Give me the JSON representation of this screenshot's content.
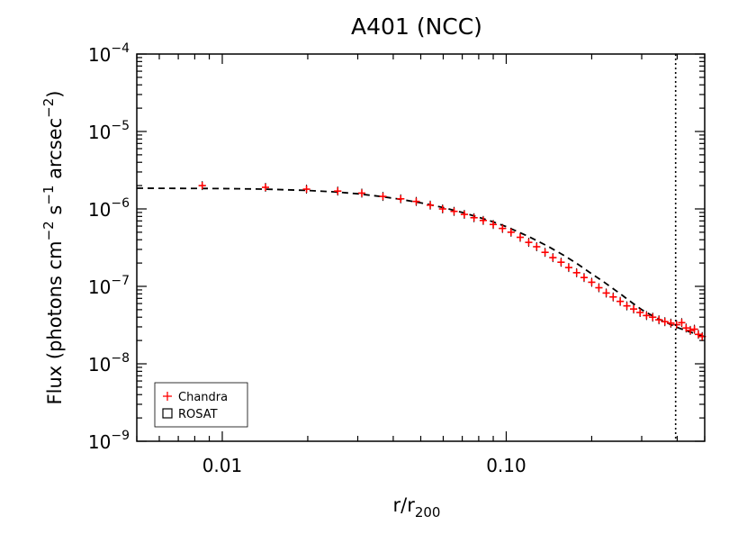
{
  "chart_data": {
    "type": "scatter",
    "title": "A401 (NCC)",
    "xlabel": {
      "base": "r/r",
      "sub": "200"
    },
    "ylabel": {
      "parts": [
        "Flux (photons cm",
        "−2",
        " s",
        "−1",
        " arcsec",
        "−2",
        ")"
      ]
    },
    "x_scale": "log",
    "y_scale": "log",
    "xlim": [
      0.005,
      0.5
    ],
    "ylim": [
      1e-09,
      0.0001
    ],
    "x_ticks": [
      {
        "value": 0.01,
        "label": "0.01"
      },
      {
        "value": 0.1,
        "label": "0.10"
      }
    ],
    "y_ticks": [
      {
        "value": 1e-09,
        "base": "10",
        "exp": "−9"
      },
      {
        "value": 1e-08,
        "base": "10",
        "exp": "−8"
      },
      {
        "value": 1e-07,
        "base": "10",
        "exp": "−7"
      },
      {
        "value": 1e-06,
        "base": "10",
        "exp": "−6"
      },
      {
        "value": 1e-05,
        "base": "10",
        "exp": "−5"
      },
      {
        "value": 0.0001,
        "base": "10",
        "exp": "−4"
      }
    ],
    "vline_x": 0.395,
    "series": [
      {
        "name": "Chandra",
        "color": "#ff0000",
        "marker": "plus",
        "x": [
          0.0085,
          0.0142,
          0.0198,
          0.0255,
          0.031,
          0.0368,
          0.0425,
          0.0482,
          0.054,
          0.0597,
          0.0655,
          0.0712,
          0.077,
          0.083,
          0.09,
          0.097,
          0.104,
          0.112,
          0.12,
          0.128,
          0.137,
          0.146,
          0.156,
          0.166,
          0.177,
          0.188,
          0.2,
          0.212,
          0.225,
          0.238,
          0.252,
          0.266,
          0.281,
          0.296,
          0.312,
          0.328,
          0.345,
          0.362,
          0.38,
          0.398,
          0.415,
          0.43,
          0.445,
          0.46,
          0.475,
          0.49
        ],
        "y": [
          2e-06,
          1.9e-06,
          1.8e-06,
          1.7e-06,
          1.6e-06,
          1.45e-06,
          1.35e-06,
          1.25e-06,
          1.12e-06,
          1e-06,
          9.3e-07,
          8.5e-07,
          7.7e-07,
          7.1e-07,
          6.3e-07,
          5.6e-07,
          5e-07,
          4.3e-07,
          3.7e-07,
          3.25e-07,
          2.75e-07,
          2.35e-07,
          2.05e-07,
          1.75e-07,
          1.5e-07,
          1.3e-07,
          1.13e-07,
          9.6e-08,
          8.2e-08,
          7.3e-08,
          6.4e-08,
          5.6e-08,
          5.1e-08,
          4.6e-08,
          4.2e-08,
          4e-08,
          3.7e-08,
          3.5e-08,
          3.35e-08,
          3.2e-08,
          3.4e-08,
          2.9e-08,
          2.7e-08,
          2.8e-08,
          2.4e-08,
          2.25e-08
        ]
      },
      {
        "name": "ROSAT",
        "color": "#000000",
        "marker": "square",
        "x": [],
        "y": []
      }
    ],
    "model": {
      "style": "dashed",
      "color": "#000000",
      "x": [
        0.005,
        0.007,
        0.01,
        0.014,
        0.02,
        0.025,
        0.03,
        0.036,
        0.042,
        0.05,
        0.06,
        0.07,
        0.08,
        0.09,
        0.1,
        0.12,
        0.14,
        0.16,
        0.18,
        0.2,
        0.22,
        0.25,
        0.28,
        0.3,
        0.33,
        0.36,
        0.4,
        0.44,
        0.48,
        0.5
      ],
      "y": [
        1.85e-06,
        1.84e-06,
        1.83e-06,
        1.8e-06,
        1.73e-06,
        1.66e-06,
        1.57e-06,
        1.45e-06,
        1.34e-06,
        1.2e-06,
        1.04e-06,
        9e-07,
        7.8e-07,
        6.8e-07,
        5.9e-07,
        4.4e-07,
        3.3e-07,
        2.5e-07,
        1.9e-07,
        1.45e-07,
        1.15e-07,
        8.2e-08,
        6e-08,
        5e-08,
        4.1e-08,
        3.5e-08,
        2.95e-08,
        2.6e-08,
        2.35e-08,
        2.25e-08
      ]
    },
    "legend": {
      "position": "bottom-left",
      "entries": [
        {
          "label": "Chandra",
          "marker": "plus",
          "color": "#ff0000"
        },
        {
          "label": "ROSAT",
          "marker": "square",
          "color": "#000000"
        }
      ]
    }
  }
}
